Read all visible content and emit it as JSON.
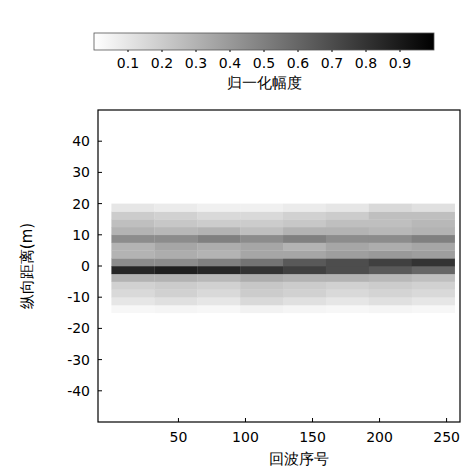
{
  "chart_data": {
    "type": "heatmap",
    "x_label": "回波序号",
    "y_label": "纵向距离(m)",
    "colorbar_label": "归一化幅度",
    "xlim": [
      -10,
      260
    ],
    "ylim": [
      -50,
      50
    ],
    "xticks": [
      50,
      100,
      150,
      200,
      250
    ],
    "yticks": [
      40,
      30,
      20,
      10,
      0,
      -10,
      -20,
      -30,
      -40
    ],
    "colorbar_range": [
      0,
      1
    ],
    "colorbar_ticks": [
      0.1,
      0.2,
      0.3,
      0.4,
      0.5,
      0.6,
      0.7,
      0.8,
      0.9
    ],
    "x_edges": [
      0,
      32,
      64,
      96,
      128,
      160,
      192,
      224,
      256
    ],
    "y_edges": [
      -15,
      -12.5,
      -10,
      -7.5,
      -5,
      -2.5,
      0,
      2.5,
      5,
      7.5,
      10,
      12.5,
      15,
      17.5,
      20
    ],
    "cells": [
      [
        0.03,
        0.04,
        0.03,
        0.05,
        0.04,
        0.03,
        0.04,
        0.03
      ],
      [
        0.1,
        0.12,
        0.1,
        0.15,
        0.12,
        0.1,
        0.12,
        0.1
      ],
      [
        0.15,
        0.18,
        0.15,
        0.2,
        0.18,
        0.15,
        0.17,
        0.15
      ],
      [
        0.18,
        0.2,
        0.18,
        0.22,
        0.2,
        0.18,
        0.2,
        0.18
      ],
      [
        0.3,
        0.3,
        0.28,
        0.32,
        0.3,
        0.3,
        0.28,
        0.25
      ],
      [
        0.85,
        0.88,
        0.85,
        0.8,
        0.75,
        0.7,
        0.65,
        0.6
      ],
      [
        0.45,
        0.45,
        0.5,
        0.55,
        0.65,
        0.7,
        0.75,
        0.8
      ],
      [
        0.3,
        0.32,
        0.3,
        0.35,
        0.35,
        0.38,
        0.4,
        0.38
      ],
      [
        0.3,
        0.35,
        0.32,
        0.35,
        0.3,
        0.35,
        0.32,
        0.35
      ],
      [
        0.45,
        0.45,
        0.5,
        0.45,
        0.5,
        0.45,
        0.45,
        0.5
      ],
      [
        0.3,
        0.28,
        0.3,
        0.25,
        0.3,
        0.3,
        0.28,
        0.3
      ],
      [
        0.25,
        0.22,
        0.2,
        0.2,
        0.22,
        0.25,
        0.25,
        0.28
      ],
      [
        0.2,
        0.18,
        0.15,
        0.15,
        0.18,
        0.2,
        0.25,
        0.25
      ],
      [
        0.1,
        0.08,
        0.06,
        0.06,
        0.08,
        0.1,
        0.15,
        0.12
      ]
    ]
  }
}
